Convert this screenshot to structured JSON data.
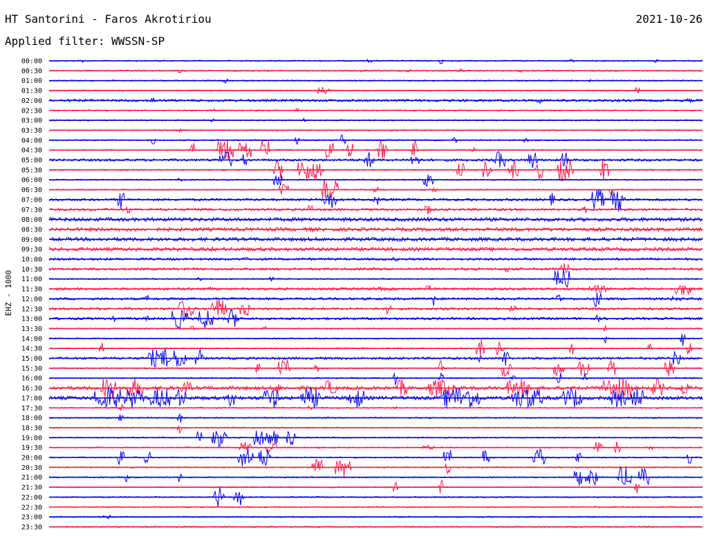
{
  "header": {
    "station": "HT Santorini - Faros Akrotiriou",
    "date": "2021-10-26",
    "filter": "Applied filter: WWSSN-SP"
  },
  "chart_data": {
    "type": "line",
    "title": "HT Santorini - Faros Akrotiriou",
    "subtitle": "Applied filter: WWSSN-SP",
    "date": "2021-10-26",
    "ylabel": "EHZ - 1000",
    "xlabel": "",
    "grid": false,
    "legend": "none",
    "trace_minutes": 30,
    "series_colors": [
      "#0000ee",
      "#ff1744"
    ],
    "time_labels": [
      "00:00",
      "00:30",
      "01:00",
      "01:30",
      "02:00",
      "02:30",
      "03:00",
      "03:30",
      "04:00",
      "04:30",
      "05:00",
      "05:30",
      "06:00",
      "06:30",
      "07:00",
      "07:30",
      "08:00",
      "08:30",
      "09:00",
      "09:30",
      "10:00",
      "10:30",
      "11:00",
      "11:30",
      "12:00",
      "12:30",
      "13:00",
      "13:30",
      "14:00",
      "14:30",
      "15:00",
      "15:30",
      "16:00",
      "16:30",
      "17:00",
      "17:30",
      "18:00",
      "18:30",
      "19:00",
      "19:30",
      "20:00",
      "20:30",
      "21:00",
      "21:30",
      "22:00",
      "22:30",
      "23:00",
      "23:30"
    ],
    "noise_level": [
      1,
      1,
      1,
      1,
      2,
      1,
      1,
      1,
      1,
      1,
      2,
      1,
      1,
      1,
      2,
      2,
      3,
      3,
      3,
      3,
      2,
      2,
      1,
      2,
      2,
      2,
      2,
      1,
      1,
      1,
      2,
      1,
      1,
      3,
      3,
      1,
      1,
      1,
      1,
      1,
      1,
      1,
      1,
      1,
      1,
      1,
      1,
      1
    ],
    "events": [
      [
        [
          0.05,
          3,
          0.3
        ],
        [
          0.49,
          3,
          0.3
        ],
        [
          0.6,
          6,
          0.4
        ],
        [
          0.8,
          3,
          0.3
        ],
        [
          0.93,
          5,
          0.3
        ]
      ],
      [
        [
          0.2,
          4,
          0.3
        ],
        [
          0.48,
          3,
          0.3
        ],
        [
          0.55,
          3,
          0.3
        ],
        [
          0.63,
          3,
          0.3
        ],
        [
          0.72,
          3,
          0.3
        ]
      ],
      [
        [
          0.27,
          4,
          0.3
        ],
        [
          0.83,
          3,
          0.3
        ]
      ],
      [
        [
          0.42,
          6,
          1
        ],
        [
          0.74,
          6,
          0.3
        ],
        [
          0.9,
          5,
          0.3
        ]
      ],
      [
        [
          0.16,
          5,
          0.5
        ],
        [
          0.75,
          5,
          0.3
        ],
        [
          0.98,
          4,
          0.3
        ]
      ],
      [
        [
          0.25,
          4,
          0.3
        ],
        [
          0.38,
          4,
          0.3
        ]
      ],
      [
        [
          0.25,
          3,
          0.3
        ],
        [
          0.39,
          3,
          0.3
        ]
      ],
      [
        [
          0.2,
          3,
          0.3
        ]
      ],
      [
        [
          0.16,
          7,
          0.3
        ],
        [
          0.38,
          7,
          0.3
        ],
        [
          0.45,
          10,
          0.3
        ],
        [
          0.62,
          6,
          0.3
        ],
        [
          0.73,
          5,
          0.3
        ]
      ],
      [
        [
          0.22,
          12,
          0.4
        ],
        [
          0.27,
          18,
          1.2
        ],
        [
          0.3,
          16,
          1
        ],
        [
          0.33,
          18,
          0.8
        ],
        [
          0.43,
          16,
          0.6
        ],
        [
          0.46,
          14,
          0.5
        ],
        [
          0.51,
          16,
          0.8
        ],
        [
          0.56,
          14,
          0.5
        ],
        [
          0.65,
          5,
          0.3
        ]
      ],
      [
        [
          0.27,
          14,
          1
        ],
        [
          0.49,
          12,
          0.8
        ],
        [
          0.3,
          10,
          0.5
        ],
        [
          0.56,
          12,
          0.6
        ],
        [
          0.69,
          14,
          0.8
        ],
        [
          0.74,
          14,
          0.8
        ],
        [
          0.79,
          14,
          0.6
        ]
      ],
      [
        [
          0.35,
          14,
          0.8
        ],
        [
          0.4,
          16,
          2
        ],
        [
          0.63,
          14,
          0.6
        ],
        [
          0.67,
          14,
          0.8
        ],
        [
          0.71,
          14,
          0.8
        ],
        [
          0.75,
          14,
          0.6
        ],
        [
          0.79,
          18,
          1.2
        ],
        [
          0.85,
          18,
          0.6
        ]
      ],
      [
        [
          0.35,
          14,
          0.6
        ],
        [
          0.58,
          12,
          0.8
        ],
        [
          0.2,
          3,
          0.3
        ]
      ],
      [
        [
          0.36,
          14,
          0.8
        ],
        [
          0.43,
          18,
          1.2
        ],
        [
          0.5,
          9,
          0.3
        ],
        [
          0.59,
          6,
          0.4
        ],
        [
          0.86,
          10,
          0.4
        ]
      ],
      [
        [
          0.11,
          14,
          0.5
        ],
        [
          0.43,
          14,
          1
        ],
        [
          0.5,
          10,
          0.5
        ],
        [
          0.65,
          4,
          0.3
        ],
        [
          0.77,
          10,
          0.3
        ],
        [
          0.84,
          16,
          1
        ],
        [
          0.87,
          18,
          1.2
        ]
      ],
      [
        [
          0.12,
          8,
          0.3
        ],
        [
          0.4,
          10,
          0.4
        ],
        [
          0.58,
          9,
          0.5
        ],
        [
          0.82,
          6,
          0.3
        ]
      ],
      [
        [
          0.4,
          5,
          0.3
        ],
        [
          0.58,
          4,
          0.3
        ]
      ],
      [
        [
          0.4,
          5,
          0.3
        ]
      ],
      [],
      [
        [
          0.25,
          4,
          0.3
        ]
      ],
      [
        [
          0.3,
          4,
          0.3
        ],
        [
          0.53,
          4,
          0.3
        ]
      ],
      [
        [
          0.7,
          6,
          0.3
        ],
        [
          0.79,
          14,
          0.6
        ]
      ],
      [
        [
          0.23,
          5,
          0.3
        ],
        [
          0.34,
          4,
          0.3
        ],
        [
          0.78,
          16,
          0.8
        ],
        [
          0.79,
          18,
          0.6
        ]
      ],
      [
        [
          0.25,
          4,
          0.3
        ],
        [
          0.58,
          8,
          0.3
        ],
        [
          0.51,
          3,
          1.5
        ],
        [
          0.84,
          6,
          1.5
        ],
        [
          0.97,
          10,
          1.2
        ]
      ],
      [
        [
          0.15,
          6,
          0.3
        ],
        [
          0.59,
          14,
          0.3
        ],
        [
          0.78,
          12,
          0.3
        ],
        [
          0.84,
          14,
          0.6
        ],
        [
          0.96,
          4,
          1
        ]
      ],
      [
        [
          0.21,
          14,
          1.2
        ],
        [
          0.26,
          16,
          1.2
        ],
        [
          0.3,
          12,
          0.8
        ],
        [
          0.52,
          12,
          0.3
        ],
        [
          0.71,
          5,
          0.5
        ]
      ],
      [
        [
          0.1,
          4,
          0.3
        ],
        [
          0.15,
          5,
          0.3
        ],
        [
          0.2,
          16,
          1.2
        ],
        [
          0.24,
          16,
          1.2
        ],
        [
          0.28,
          14,
          1
        ],
        [
          0.84,
          6,
          0.3
        ]
      ],
      [
        [
          0.22,
          5,
          0.3
        ],
        [
          0.33,
          5,
          0.3
        ],
        [
          0.85,
          6,
          0.3
        ]
      ],
      [
        [
          0.85,
          8,
          0.3
        ],
        [
          0.97,
          12,
          0.4
        ]
      ],
      [
        [
          0.08,
          12,
          0.3
        ],
        [
          0.66,
          14,
          0.6
        ],
        [
          0.69,
          14,
          0.6
        ],
        [
          0.8,
          10,
          0.3
        ],
        [
          0.92,
          10,
          0.4
        ],
        [
          0.98,
          12,
          0.4
        ]
      ],
      [
        [
          0.16,
          14,
          0.8
        ],
        [
          0.18,
          16,
          1
        ],
        [
          0.2,
          16,
          1
        ],
        [
          0.23,
          14,
          0.6
        ],
        [
          0.66,
          8,
          0.4
        ],
        [
          0.7,
          14,
          0.6
        ],
        [
          0.96,
          12,
          0.8
        ]
      ],
      [
        [
          0.32,
          10,
          0.3
        ],
        [
          0.36,
          14,
          1
        ],
        [
          0.41,
          8,
          0.3
        ],
        [
          0.6,
          12,
          0.4
        ],
        [
          0.7,
          14,
          0.8
        ],
        [
          0.78,
          14,
          0.8
        ],
        [
          0.82,
          14,
          1
        ],
        [
          0.86,
          14,
          0.6
        ],
        [
          0.95,
          16,
          0.8
        ]
      ],
      [
        [
          0.53,
          10,
          0.3
        ],
        [
          0.6,
          8,
          0.3
        ],
        [
          0.71,
          6,
          0.3
        ],
        [
          0.78,
          10,
          0.4
        ],
        [
          0.82,
          6,
          0.3
        ]
      ],
      [
        [
          0.09,
          18,
          1.2
        ],
        [
          0.13,
          14,
          1.5
        ],
        [
          0.21,
          10,
          0.8
        ],
        [
          0.35,
          8,
          0.6
        ],
        [
          0.43,
          12,
          1
        ],
        [
          0.54,
          14,
          0.8
        ],
        [
          0.6,
          14,
          2
        ],
        [
          0.72,
          14,
          2
        ],
        [
          0.87,
          18,
          2.5
        ],
        [
          0.93,
          14,
          1
        ],
        [
          0.97,
          12,
          0.8
        ]
      ],
      [
        [
          0.09,
          18,
          2
        ],
        [
          0.13,
          16,
          1.5
        ],
        [
          0.17,
          16,
          1.5
        ],
        [
          0.2,
          14,
          1
        ],
        [
          0.28,
          14,
          0.6
        ],
        [
          0.34,
          16,
          1.2
        ],
        [
          0.4,
          16,
          1.5
        ],
        [
          0.47,
          16,
          1.2
        ],
        [
          0.63,
          18,
          3
        ],
        [
          0.73,
          16,
          2.5
        ],
        [
          0.8,
          16,
          1.5
        ],
        [
          0.87,
          14,
          1.2
        ],
        [
          0.9,
          16,
          1
        ]
      ],
      [
        [
          0.11,
          6,
          0.3
        ],
        [
          0.4,
          4,
          0.3
        ],
        [
          0.53,
          4,
          0.3
        ]
      ],
      [
        [
          0.11,
          12,
          0.3
        ],
        [
          0.2,
          10,
          0.3
        ]
      ],
      [
        [
          0.2,
          8,
          0.3
        ]
      ],
      [
        [
          0.23,
          14,
          0.3
        ],
        [
          0.26,
          14,
          1.2
        ],
        [
          0.32,
          14,
          0.8
        ],
        [
          0.34,
          12,
          1
        ],
        [
          0.37,
          12,
          0.6
        ]
      ],
      [
        [
          0.3,
          10,
          1
        ],
        [
          0.34,
          10,
          0.8
        ],
        [
          0.58,
          4,
          1
        ],
        [
          0.84,
          10,
          0.6
        ],
        [
          0.87,
          10,
          0.5
        ],
        [
          0.92,
          4,
          0.3
        ]
      ],
      [
        [
          0.11,
          14,
          0.5
        ],
        [
          0.15,
          10,
          0.5
        ],
        [
          0.3,
          16,
          1.2
        ],
        [
          0.33,
          14,
          1
        ],
        [
          0.61,
          14,
          0.6
        ],
        [
          0.67,
          14,
          0.6
        ],
        [
          0.75,
          14,
          1
        ],
        [
          0.81,
          10,
          0.5
        ],
        [
          0.98,
          12,
          0.3
        ]
      ],
      [
        [
          0.41,
          14,
          0.8
        ],
        [
          0.45,
          14,
          1.2
        ],
        [
          0.61,
          10,
          0.3
        ]
      ],
      [
        [
          0.12,
          8,
          0.3
        ],
        [
          0.2,
          10,
          0.3
        ],
        [
          0.81,
          14,
          0.6
        ],
        [
          0.83,
          14,
          1
        ],
        [
          0.88,
          16,
          1.2
        ],
        [
          0.91,
          14,
          0.8
        ]
      ],
      [
        [
          0.53,
          8,
          0.3
        ],
        [
          0.6,
          12,
          0.3
        ],
        [
          0.9,
          10,
          0.3
        ]
      ],
      [
        [
          0.26,
          16,
          0.8
        ],
        [
          0.29,
          14,
          0.8
        ]
      ],
      [],
      [
        [
          0.09,
          3,
          0.8
        ]
      ],
      []
    ]
  }
}
